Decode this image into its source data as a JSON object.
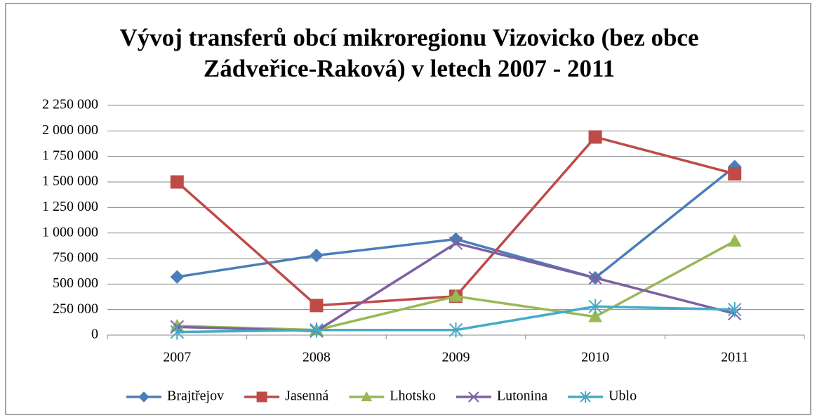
{
  "chart_data": {
    "type": "line",
    "title": [
      "Vývoj transferů obcí mikroregionu Vizovicko (bez obce",
      "Zádveřice-Raková) v letech 2007 - 2011"
    ],
    "categories": [
      "2007",
      "2008",
      "2009",
      "2010",
      "2011"
    ],
    "series": [
      {
        "name": "Brajtřejov",
        "color": "#4a7ebb",
        "marker": "diamond",
        "values": [
          570000,
          780000,
          940000,
          560000,
          1650000
        ]
      },
      {
        "name": "Jasenná",
        "color": "#be4b48",
        "marker": "square",
        "values": [
          1500000,
          290000,
          380000,
          1940000,
          1580000
        ]
      },
      {
        "name": "Lhotsko",
        "color": "#98b954",
        "marker": "triangle",
        "values": [
          90000,
          50000,
          380000,
          180000,
          920000
        ]
      },
      {
        "name": "Lutonina",
        "color": "#7d60a0",
        "marker": "x",
        "values": [
          80000,
          40000,
          900000,
          560000,
          210000
        ]
      },
      {
        "name": "Ublo",
        "color": "#46aac5",
        "marker": "star",
        "values": [
          30000,
          50000,
          50000,
          280000,
          250000
        ]
      }
    ],
    "ylim": [
      0,
      2250000
    ],
    "yticks": [
      0,
      {
        "value": 250000,
        "label": "250 000"
      },
      {
        "value": 500000,
        "label": "500 000"
      },
      {
        "value": 750000,
        "label": "750 000"
      },
      {
        "value": 1000000,
        "label": "1 000 000"
      },
      {
        "value": 1250000,
        "label": "1 250 000"
      },
      {
        "value": 1500000,
        "label": "1 500 000"
      },
      {
        "value": 1750000,
        "label": "1 750 000"
      },
      {
        "value": 2000000,
        "label": "2 000 000"
      },
      {
        "value": 2250000,
        "label": "2 250 000"
      }
    ],
    "grid": true,
    "legend": "bottom"
  }
}
